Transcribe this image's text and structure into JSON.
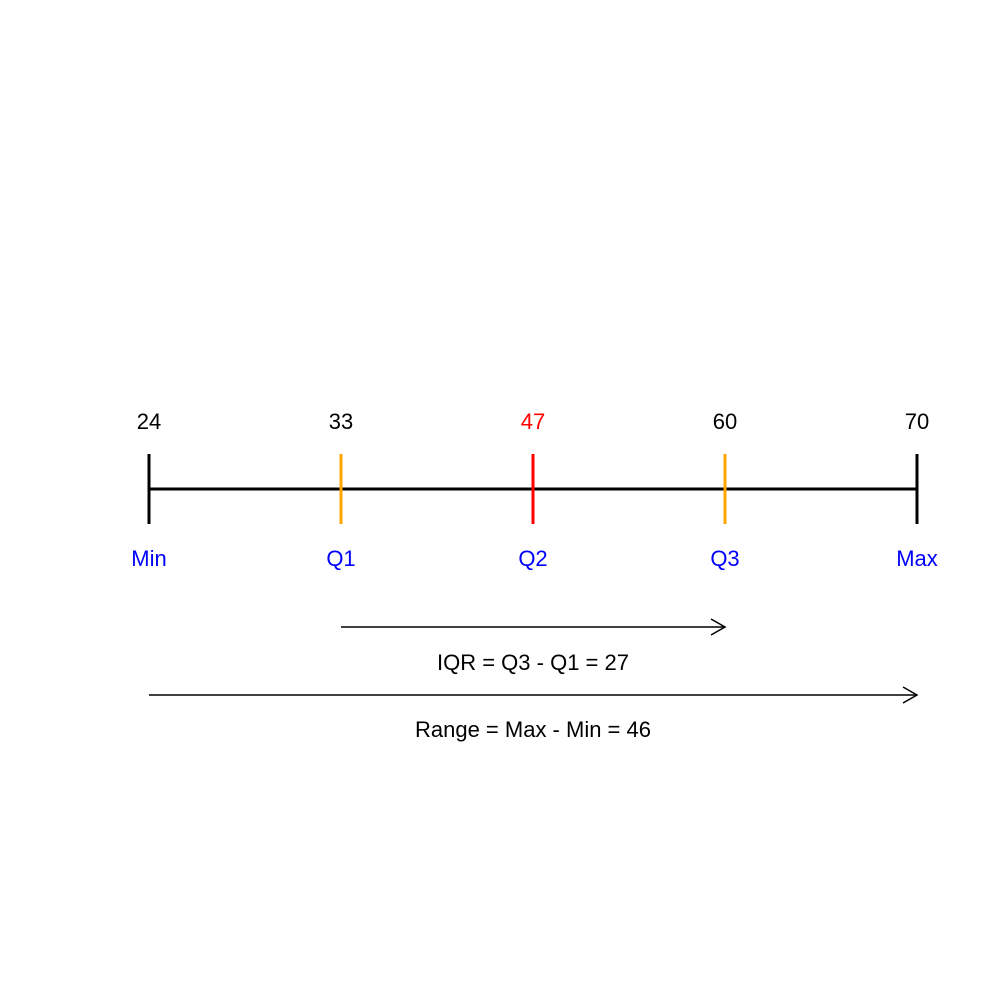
{
  "number_line": {
    "points": [
      {
        "id": "min",
        "value": "24",
        "label": "Min",
        "tick_color": "#000000",
        "value_color": "#000000"
      },
      {
        "id": "q1",
        "value": "33",
        "label": "Q1",
        "tick_color": "#FFA500",
        "value_color": "#000000"
      },
      {
        "id": "q2",
        "value": "47",
        "label": "Q2",
        "tick_color": "#FF0000",
        "value_color": "#FF0000"
      },
      {
        "id": "q3",
        "value": "60",
        "label": "Q3",
        "tick_color": "#FFA500",
        "value_color": "#000000"
      },
      {
        "id": "max",
        "value": "70",
        "label": "Max",
        "tick_color": "#000000",
        "value_color": "#000000"
      }
    ],
    "label_color": "#0000FF",
    "line_color": "#000000"
  },
  "annotations": {
    "iqr": "IQR = Q3 - Q1 = 27",
    "range": "Range = Max - Min = 46"
  }
}
